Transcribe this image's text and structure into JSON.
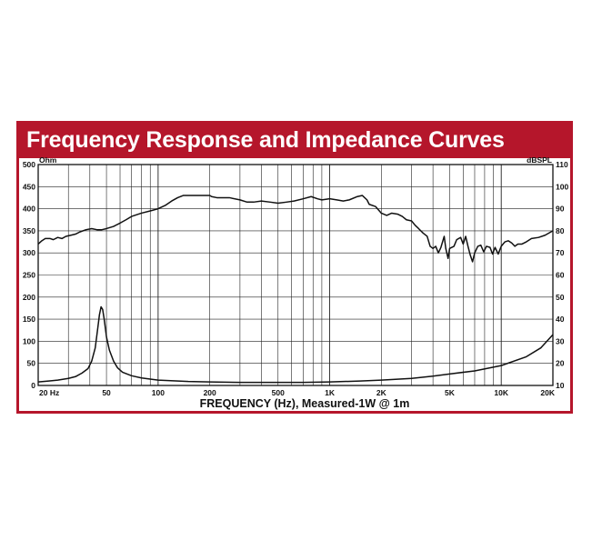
{
  "chart_data": {
    "type": "line",
    "title": "Frequency Response and Impedance Curves",
    "xlabel": "FREQUENCY (Hz), Measured-1W @ 1m",
    "x_scale": "log",
    "xlim": [
      20,
      20000
    ],
    "x_tick_labels": [
      {
        "value": 20,
        "label": "20 Hz"
      },
      {
        "value": 50,
        "label": "50"
      },
      {
        "value": 100,
        "label": "100"
      },
      {
        "value": 200,
        "label": "200"
      },
      {
        "value": 500,
        "label": "500"
      },
      {
        "value": 1000,
        "label": "1K"
      },
      {
        "value": 2000,
        "label": "2K"
      },
      {
        "value": 5000,
        "label": "5K"
      },
      {
        "value": 10000,
        "label": "10K"
      },
      {
        "value": 20000,
        "label": "20K"
      }
    ],
    "left_axis": {
      "unit_label": "Ohm",
      "ylim": [
        0,
        500
      ],
      "ticks": [
        0,
        50,
        100,
        150,
        200,
        250,
        300,
        350,
        400,
        450,
        500
      ]
    },
    "right_axis": {
      "unit_label": "dBSPL",
      "ylim": [
        10,
        110
      ],
      "ticks": [
        10,
        20,
        30,
        40,
        50,
        60,
        70,
        80,
        90,
        100,
        110
      ]
    },
    "grid": true,
    "series": [
      {
        "axis": "right",
        "color": "#111111",
        "points": [
          [
            20,
            74
          ],
          [
            21,
            75.5
          ],
          [
            22,
            76.5
          ],
          [
            23.5,
            76.5
          ],
          [
            24.5,
            76
          ],
          [
            26,
            77
          ],
          [
            27.5,
            76.5
          ],
          [
            29,
            77.5
          ],
          [
            31,
            78
          ],
          [
            33,
            78.5
          ],
          [
            35,
            79.5
          ],
          [
            38,
            80.5
          ],
          [
            41,
            81
          ],
          [
            44,
            80.5
          ],
          [
            47,
            80.5
          ],
          [
            50,
            81
          ],
          [
            55,
            82
          ],
          [
            60,
            83.5
          ],
          [
            65,
            85
          ],
          [
            70,
            86.5
          ],
          [
            80,
            88
          ],
          [
            90,
            89
          ],
          [
            100,
            90
          ],
          [
            110,
            91.5
          ],
          [
            120,
            93.5
          ],
          [
            130,
            95
          ],
          [
            140,
            96
          ],
          [
            160,
            96
          ],
          [
            180,
            96
          ],
          [
            200,
            96
          ],
          [
            205,
            95.5
          ],
          [
            220,
            95
          ],
          [
            260,
            95
          ],
          [
            300,
            94
          ],
          [
            330,
            93
          ],
          [
            360,
            93
          ],
          [
            400,
            93.5
          ],
          [
            450,
            93
          ],
          [
            500,
            92.5
          ],
          [
            560,
            93
          ],
          [
            620,
            93.5
          ],
          [
            700,
            94.5
          ],
          [
            780,
            95.5
          ],
          [
            850,
            94.5
          ],
          [
            900,
            94
          ],
          [
            1000,
            94.5
          ],
          [
            1100,
            94
          ],
          [
            1200,
            93.5
          ],
          [
            1300,
            94
          ],
          [
            1450,
            95.5
          ],
          [
            1550,
            96
          ],
          [
            1650,
            94
          ],
          [
            1700,
            92
          ],
          [
            1850,
            91
          ],
          [
            2000,
            88
          ],
          [
            2150,
            87
          ],
          [
            2300,
            88
          ],
          [
            2500,
            87.5
          ],
          [
            2650,
            86.5
          ],
          [
            2800,
            85
          ],
          [
            3000,
            84.5
          ],
          [
            3150,
            82.5
          ],
          [
            3300,
            81
          ],
          [
            3500,
            79
          ],
          [
            3700,
            77.5
          ],
          [
            3850,
            73
          ],
          [
            4000,
            72
          ],
          [
            4150,
            73
          ],
          [
            4300,
            70
          ],
          [
            4450,
            72.5
          ],
          [
            4650,
            77.5
          ],
          [
            4750,
            72
          ],
          [
            4900,
            67.5
          ],
          [
            5000,
            72
          ],
          [
            5300,
            73
          ],
          [
            5500,
            76
          ],
          [
            5800,
            77
          ],
          [
            6000,
            74
          ],
          [
            6200,
            77.5
          ],
          [
            6400,
            73
          ],
          [
            6600,
            69
          ],
          [
            6800,
            66
          ],
          [
            7000,
            70
          ],
          [
            7300,
            73
          ],
          [
            7600,
            73.5
          ],
          [
            7900,
            70.5
          ],
          [
            8200,
            73
          ],
          [
            8600,
            72.5
          ],
          [
            8900,
            69.5
          ],
          [
            9200,
            72.5
          ],
          [
            9600,
            69.5
          ],
          [
            10000,
            73
          ],
          [
            10500,
            75
          ],
          [
            11000,
            75.5
          ],
          [
            11500,
            74.5
          ],
          [
            12000,
            73
          ],
          [
            12500,
            74
          ],
          [
            13200,
            74
          ],
          [
            14000,
            75
          ],
          [
            15000,
            76.5
          ],
          [
            16500,
            77
          ],
          [
            18000,
            78
          ],
          [
            20000,
            80
          ]
        ]
      },
      {
        "axis": "left",
        "color": "#111111",
        "points": [
          [
            20,
            8
          ],
          [
            23,
            10
          ],
          [
            26,
            12
          ],
          [
            30,
            16
          ],
          [
            33,
            20
          ],
          [
            36,
            28
          ],
          [
            39,
            38
          ],
          [
            41,
            55
          ],
          [
            43,
            85
          ],
          [
            44.5,
            130
          ],
          [
            45.5,
            160
          ],
          [
            46.5,
            178
          ],
          [
            47.5,
            172
          ],
          [
            48.5,
            150
          ],
          [
            50,
            110
          ],
          [
            52,
            80
          ],
          [
            55,
            55
          ],
          [
            58,
            40
          ],
          [
            62,
            30
          ],
          [
            70,
            22
          ],
          [
            80,
            17
          ],
          [
            100,
            12
          ],
          [
            150,
            9
          ],
          [
            200,
            8
          ],
          [
            300,
            7
          ],
          [
            500,
            7
          ],
          [
            700,
            7
          ],
          [
            1000,
            8
          ],
          [
            1500,
            10
          ],
          [
            2000,
            12
          ],
          [
            3000,
            16
          ],
          [
            4000,
            21
          ],
          [
            5000,
            26
          ],
          [
            7000,
            33
          ],
          [
            10000,
            45
          ],
          [
            14000,
            65
          ],
          [
            17000,
            85
          ],
          [
            20000,
            115
          ]
        ]
      }
    ]
  }
}
